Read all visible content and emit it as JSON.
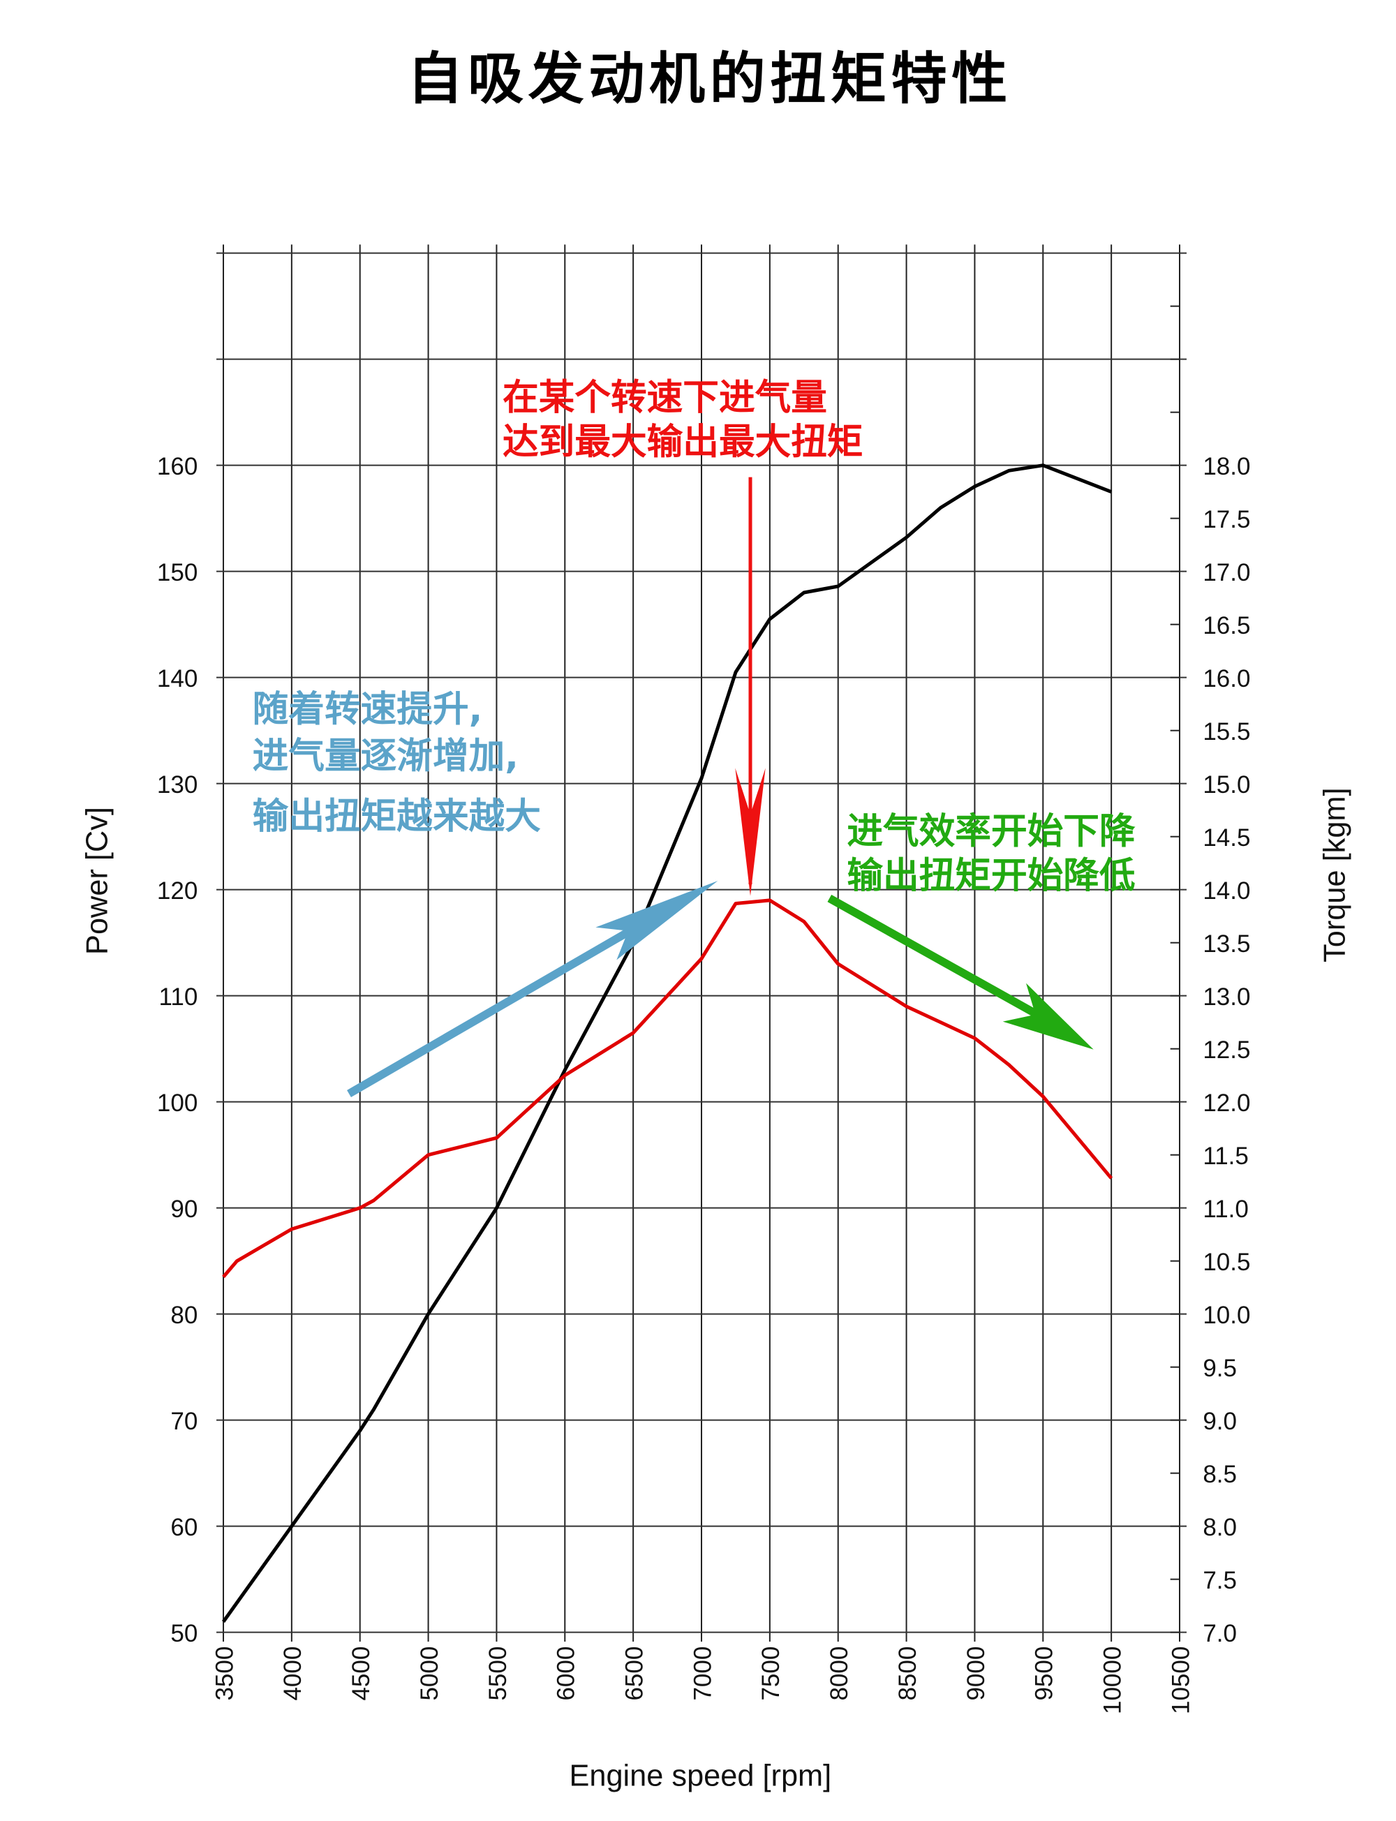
{
  "chart_data": {
    "type": "line",
    "title": "自吸发动机的扭矩特性",
    "xlabel": "Engine speed [rpm]",
    "ylabel": "Power [Cv]",
    "y2label": "Torque [kgm]",
    "xlim": [
      3500,
      10500
    ],
    "ylim": [
      50,
      182
    ],
    "y2lim": [
      7.0,
      20.2
    ],
    "grid": true,
    "x_ticks": [
      "3500",
      "4000",
      "4500",
      "5000",
      "5500",
      "6000",
      "6500",
      "7000",
      "7500",
      "8000",
      "8500",
      "9000",
      "9500",
      "10000",
      "10500"
    ],
    "y_ticks": [
      "50",
      "60",
      "70",
      "80",
      "90",
      "100",
      "110",
      "120",
      "130",
      "140",
      "150",
      "160"
    ],
    "y2_ticks": [
      "7.0",
      "7.5",
      "8.0",
      "8.5",
      "9.0",
      "9.5",
      "10.0",
      "10.5",
      "11.0",
      "11.5",
      "12.0",
      "12.5",
      "13.0",
      "13.5",
      "14.0",
      "14.5",
      "15.0",
      "15.5",
      "16.0",
      "16.5",
      "17.0",
      "17.5",
      "18.0"
    ],
    "series": [
      {
        "axis": "left",
        "color": "#000000",
        "x": [
          3500,
          4000,
          4500,
          4600,
          5000,
          5500,
          6000,
          6500,
          7000,
          7250,
          7500,
          7750,
          8000,
          8500,
          8750,
          9000,
          9250,
          9500,
          10000
        ],
        "y": [
          51,
          60,
          69,
          71,
          80,
          90,
          103,
          115,
          130.5,
          140.5,
          145.5,
          148,
          148.6,
          153.2,
          156,
          158,
          159.5,
          160,
          157.5
        ]
      },
      {
        "axis": "right",
        "color": "#e00000",
        "x": [
          3500,
          3600,
          4000,
          4500,
          4600,
          5000,
          5500,
          6000,
          6500,
          7000,
          7250,
          7500,
          7750,
          8000,
          8500,
          8750,
          9000,
          9250,
          9500,
          10000
        ],
        "y": [
          10.35,
          10.5,
          10.8,
          11.0,
          11.07,
          11.5,
          11.66,
          12.25,
          12.65,
          13.35,
          13.87,
          13.9,
          13.7,
          13.3,
          12.9,
          12.75,
          12.6,
          12.35,
          12.05,
          11.28
        ]
      }
    ],
    "annotations": [
      {
        "color": "#ee1111",
        "lines": [
          "在某个转速下进气量",
          "达到最大输出最大扭矩"
        ]
      },
      {
        "color": "#5ba3c9",
        "lines": [
          "随着转速提升,",
          "进气量逐渐增加,",
          "输出扭矩越来越大"
        ]
      },
      {
        "color": "#22aa11",
        "lines": [
          "进气效率开始下降",
          "输出扭矩开始降低"
        ]
      }
    ]
  }
}
